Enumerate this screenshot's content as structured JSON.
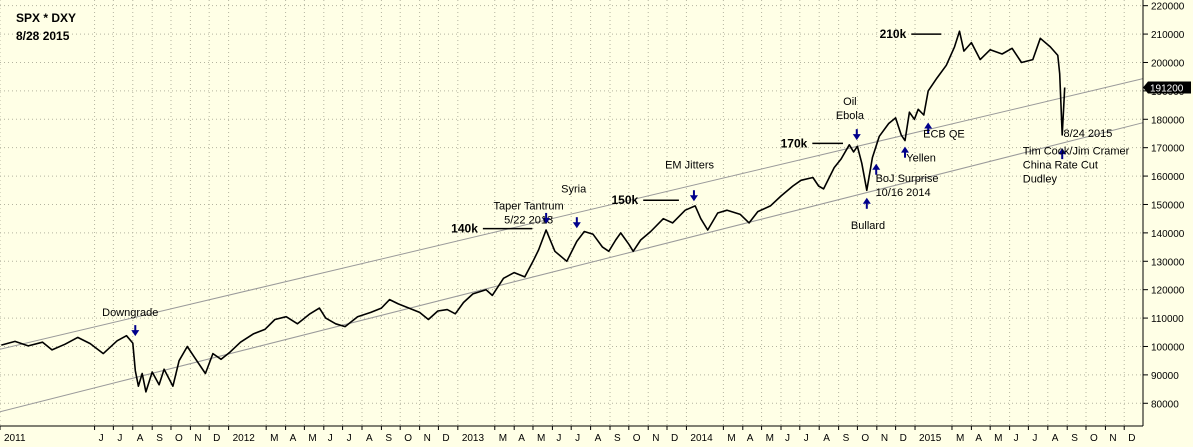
{
  "chart_data": {
    "type": "line",
    "title": "SPX * DXY",
    "subtitle": "8/28 2015",
    "ylim": [
      72000,
      222000
    ],
    "y_ticks": [
      80000,
      90000,
      100000,
      110000,
      120000,
      130000,
      140000,
      150000,
      160000,
      170000,
      180000,
      190000,
      200000,
      210000,
      220000
    ],
    "y_tick_labels": [
      "80000",
      "90000",
      "100000",
      "110000",
      "120000",
      "130000",
      "140000",
      "150000",
      "160000",
      "170000",
      "180000",
      "190000",
      "200000",
      "210000",
      "220000"
    ],
    "x_range": [
      "2011-01-01",
      "2015-12-31"
    ],
    "x_ticks": [
      {
        "date": "2011-01-01",
        "label": "2011"
      },
      {
        "date": "2011-06-01",
        "label": "J"
      },
      {
        "date": "2011-07-01",
        "label": "J"
      },
      {
        "date": "2011-08-01",
        "label": "A"
      },
      {
        "date": "2011-09-01",
        "label": "S"
      },
      {
        "date": "2011-10-01",
        "label": "O"
      },
      {
        "date": "2011-11-01",
        "label": "N"
      },
      {
        "date": "2011-12-01",
        "label": "D"
      },
      {
        "date": "2012-01-01",
        "label": "2012"
      },
      {
        "date": "2012-03-01",
        "label": "M"
      },
      {
        "date": "2012-04-01",
        "label": "A"
      },
      {
        "date": "2012-05-01",
        "label": "M"
      },
      {
        "date": "2012-06-01",
        "label": "J"
      },
      {
        "date": "2012-07-01",
        "label": "J"
      },
      {
        "date": "2012-08-01",
        "label": "A"
      },
      {
        "date": "2012-09-01",
        "label": "S"
      },
      {
        "date": "2012-10-01",
        "label": "O"
      },
      {
        "date": "2012-11-01",
        "label": "N"
      },
      {
        "date": "2012-12-01",
        "label": "D"
      },
      {
        "date": "2013-01-01",
        "label": "2013"
      },
      {
        "date": "2013-03-01",
        "label": "M"
      },
      {
        "date": "2013-04-01",
        "label": "A"
      },
      {
        "date": "2013-05-01",
        "label": "M"
      },
      {
        "date": "2013-06-01",
        "label": "J"
      },
      {
        "date": "2013-07-01",
        "label": "J"
      },
      {
        "date": "2013-08-01",
        "label": "A"
      },
      {
        "date": "2013-09-01",
        "label": "S"
      },
      {
        "date": "2013-10-01",
        "label": "O"
      },
      {
        "date": "2013-11-01",
        "label": "N"
      },
      {
        "date": "2013-12-01",
        "label": "D"
      },
      {
        "date": "2014-01-01",
        "label": "2014"
      },
      {
        "date": "2014-03-01",
        "label": "M"
      },
      {
        "date": "2014-04-01",
        "label": "A"
      },
      {
        "date": "2014-05-01",
        "label": "M"
      },
      {
        "date": "2014-06-01",
        "label": "J"
      },
      {
        "date": "2014-07-01",
        "label": "J"
      },
      {
        "date": "2014-08-01",
        "label": "A"
      },
      {
        "date": "2014-09-01",
        "label": "S"
      },
      {
        "date": "2014-10-01",
        "label": "O"
      },
      {
        "date": "2014-11-01",
        "label": "N"
      },
      {
        "date": "2014-12-01",
        "label": "D"
      },
      {
        "date": "2015-01-01",
        "label": "2015"
      },
      {
        "date": "2015-03-01",
        "label": "M"
      },
      {
        "date": "2015-04-01",
        "label": "A"
      },
      {
        "date": "2015-05-01",
        "label": "M"
      },
      {
        "date": "2015-06-01",
        "label": "J"
      },
      {
        "date": "2015-07-01",
        "label": "J"
      },
      {
        "date": "2015-08-01",
        "label": "A"
      },
      {
        "date": "2015-09-01",
        "label": "S"
      },
      {
        "date": "2015-10-01",
        "label": "O"
      },
      {
        "date": "2015-11-01",
        "label": "N"
      },
      {
        "date": "2015-12-01",
        "label": "D"
      }
    ],
    "grid": true,
    "last_value": 191200,
    "last_value_label": "191200",
    "series": [
      {
        "color": "#000000",
        "points": [
          [
            "2011-01-03",
            100500
          ],
          [
            "2011-01-25",
            101800
          ],
          [
            "2011-02-15",
            100200
          ],
          [
            "2011-03-10",
            101500
          ],
          [
            "2011-03-25",
            98800
          ],
          [
            "2011-04-15",
            100800
          ],
          [
            "2011-05-05",
            103200
          ],
          [
            "2011-05-25",
            101000
          ],
          [
            "2011-06-15",
            97500
          ],
          [
            "2011-07-07",
            102000
          ],
          [
            "2011-07-22",
            103800
          ],
          [
            "2011-08-01",
            101200
          ],
          [
            "2011-08-05",
            91500
          ],
          [
            "2011-08-10",
            86000
          ],
          [
            "2011-08-16",
            90500
          ],
          [
            "2011-08-22",
            84000
          ],
          [
            "2011-09-01",
            91000
          ],
          [
            "2011-09-12",
            86500
          ],
          [
            "2011-09-20",
            92000
          ],
          [
            "2011-10-04",
            86000
          ],
          [
            "2011-10-14",
            95000
          ],
          [
            "2011-10-27",
            100000
          ],
          [
            "2011-11-08",
            96000
          ],
          [
            "2011-11-25",
            90500
          ],
          [
            "2011-12-07",
            97500
          ],
          [
            "2011-12-20",
            95500
          ],
          [
            "2012-01-03",
            98000
          ],
          [
            "2012-01-20",
            101500
          ],
          [
            "2012-02-10",
            104500
          ],
          [
            "2012-02-28",
            106000
          ],
          [
            "2012-03-15",
            109500
          ],
          [
            "2012-04-02",
            110500
          ],
          [
            "2012-04-20",
            108000
          ],
          [
            "2012-05-10",
            111500
          ],
          [
            "2012-05-25",
            113500
          ],
          [
            "2012-06-04",
            110000
          ],
          [
            "2012-06-20",
            108000
          ],
          [
            "2012-07-05",
            107000
          ],
          [
            "2012-07-25",
            110500
          ],
          [
            "2012-08-15",
            112000
          ],
          [
            "2012-09-01",
            113500
          ],
          [
            "2012-09-14",
            116500
          ],
          [
            "2012-09-28",
            115000
          ],
          [
            "2012-10-15",
            113500
          ],
          [
            "2012-11-01",
            112000
          ],
          [
            "2012-11-15",
            109500
          ],
          [
            "2012-11-30",
            112500
          ],
          [
            "2012-12-15",
            113000
          ],
          [
            "2012-12-28",
            111500
          ],
          [
            "2013-01-10",
            115500
          ],
          [
            "2013-01-25",
            118500
          ],
          [
            "2013-02-15",
            120000
          ],
          [
            "2013-02-25",
            118000
          ],
          [
            "2013-03-15",
            124000
          ],
          [
            "2013-04-01",
            126000
          ],
          [
            "2013-04-18",
            124500
          ],
          [
            "2013-05-01",
            130000
          ],
          [
            "2013-05-10",
            134000
          ],
          [
            "2013-05-22",
            141000
          ],
          [
            "2013-06-05",
            133500
          ],
          [
            "2013-06-24",
            130000
          ],
          [
            "2013-07-10",
            137000
          ],
          [
            "2013-07-22",
            140500
          ],
          [
            "2013-08-05",
            139500
          ],
          [
            "2013-08-20",
            135000
          ],
          [
            "2013-08-30",
            133500
          ],
          [
            "2013-09-10",
            137500
          ],
          [
            "2013-09-18",
            140000
          ],
          [
            "2013-10-01",
            136000
          ],
          [
            "2013-10-08",
            133500
          ],
          [
            "2013-10-20",
            137500
          ],
          [
            "2013-11-05",
            140500
          ],
          [
            "2013-11-25",
            145000
          ],
          [
            "2013-12-10",
            143500
          ],
          [
            "2013-12-30",
            148000
          ],
          [
            "2014-01-15",
            149500
          ],
          [
            "2014-01-24",
            145000
          ],
          [
            "2014-02-04",
            141000
          ],
          [
            "2014-02-20",
            147000
          ],
          [
            "2014-03-07",
            148000
          ],
          [
            "2014-03-28",
            146500
          ],
          [
            "2014-04-11",
            143500
          ],
          [
            "2014-04-25",
            147500
          ],
          [
            "2014-05-15",
            149500
          ],
          [
            "2014-06-01",
            153000
          ],
          [
            "2014-06-20",
            156500
          ],
          [
            "2014-07-03",
            158500
          ],
          [
            "2014-07-22",
            159500
          ],
          [
            "2014-07-31",
            156500
          ],
          [
            "2014-08-08",
            155500
          ],
          [
            "2014-08-25",
            163000
          ],
          [
            "2014-09-05",
            166000
          ],
          [
            "2014-09-18",
            171000
          ],
          [
            "2014-09-25",
            168500
          ],
          [
            "2014-10-01",
            170500
          ],
          [
            "2014-10-08",
            164500
          ],
          [
            "2014-10-16",
            155000
          ],
          [
            "2014-10-25",
            166500
          ],
          [
            "2014-11-05",
            174000
          ],
          [
            "2014-11-20",
            178500
          ],
          [
            "2014-12-01",
            180500
          ],
          [
            "2014-12-10",
            174500
          ],
          [
            "2014-12-16",
            172500
          ],
          [
            "2014-12-23",
            182500
          ],
          [
            "2014-12-31",
            180000
          ],
          [
            "2015-01-06",
            183500
          ],
          [
            "2015-01-15",
            181500
          ],
          [
            "2015-01-22",
            190000
          ],
          [
            "2015-02-05",
            194500
          ],
          [
            "2015-02-20",
            199000
          ],
          [
            "2015-03-05",
            205500
          ],
          [
            "2015-03-13",
            211000
          ],
          [
            "2015-03-20",
            204000
          ],
          [
            "2015-04-01",
            207000
          ],
          [
            "2015-04-15",
            201000
          ],
          [
            "2015-05-01",
            204500
          ],
          [
            "2015-05-20",
            203000
          ],
          [
            "2015-06-05",
            205000
          ],
          [
            "2015-06-20",
            200000
          ],
          [
            "2015-07-08",
            201000
          ],
          [
            "2015-07-20",
            208500
          ],
          [
            "2015-08-05",
            205500
          ],
          [
            "2015-08-17",
            202500
          ],
          [
            "2015-08-20",
            196000
          ],
          [
            "2015-08-24",
            174500
          ],
          [
            "2015-08-26",
            183000
          ],
          [
            "2015-08-28",
            191200
          ]
        ]
      }
    ],
    "trend_lines": [
      {
        "from": [
          "2011-01-01",
          77000
        ],
        "to": [
          "2015-12-31",
          178800
        ]
      },
      {
        "from": [
          "2011-01-01",
          99000
        ],
        "to": [
          "2015-12-31",
          194300
        ]
      }
    ],
    "level_marks": [
      {
        "label": "210k",
        "value": 210000,
        "from": "2014-12-26",
        "to": "2015-02-12"
      },
      {
        "label": "170k",
        "value": 171500,
        "from": "2014-07-21",
        "to": "2014-09-08"
      },
      {
        "label": "150k",
        "value": 151500,
        "from": "2013-10-24",
        "to": "2013-12-20"
      },
      {
        "label": "140k",
        "value": 141500,
        "from": "2013-02-10",
        "to": "2013-04-30"
      }
    ],
    "annotations": [
      {
        "date": "2011-08-05",
        "arrow": "down",
        "value": 104000,
        "lines": [
          "Downgrade"
        ],
        "text_date": "2011-07-28",
        "text_value": 110800,
        "anchor": "middle"
      },
      {
        "date": "2013-05-22",
        "arrow": "down",
        "value": 143500,
        "lines": [
          "Taper Tantrum",
          "5/22 2013"
        ],
        "text_date": "2013-04-24",
        "text_value": 148200,
        "anchor": "middle"
      },
      {
        "date": "2013-07-10",
        "arrow": "down",
        "value": 142000,
        "lines": [
          "Syria"
        ],
        "text_date": "2013-07-05",
        "text_value": 154200,
        "anchor": "middle"
      },
      {
        "date": "2014-01-13",
        "arrow": "down",
        "value": 151500,
        "lines": [
          "EM Jitters"
        ],
        "text_date": "2014-01-06",
        "text_value": 162700,
        "anchor": "middle"
      },
      {
        "date": "2014-09-30",
        "arrow": "down",
        "value": 173000,
        "lines": [
          "Oil",
          "Ebola"
        ],
        "text_date": "2014-09-19",
        "text_value": 185100,
        "anchor": "middle"
      },
      {
        "date": "2014-10-16",
        "arrow": "up",
        "value": 152000,
        "lines": [
          "Bullard"
        ],
        "text_date": "2014-10-18",
        "text_value": 141400,
        "anchor": "middle"
      },
      {
        "date": "2014-10-31",
        "arrow": "up",
        "value": 164000,
        "lines": [
          "BoJ Surprise",
          "10/16 2014"
        ],
        "text_date": "2014-10-30",
        "text_value": 157900,
        "anchor": "start"
      },
      {
        "date": "2014-12-16",
        "arrow": "up",
        "value": 170000,
        "lines": [
          "Yellen"
        ],
        "text_date": "2014-12-18",
        "text_value": 165100,
        "anchor": "start"
      },
      {
        "date": "2015-01-22",
        "arrow": "up",
        "value": 178500,
        "lines": [
          "ECB QE"
        ],
        "text_date": "2015-01-14",
        "text_value": 173500,
        "anchor": "start"
      },
      {
        "date": "2015-08-24",
        "arrow": "up",
        "value": 169500,
        "lines": [
          "8/24 2015"
        ],
        "text_date": "2015-08-26",
        "text_value": 173800,
        "anchor": "start"
      },
      {
        "date": "2015-08-24",
        "arrow": "none",
        "value": 165000,
        "lines": [
          "Tim Cook/Jim Cramer",
          "China Rate Cut",
          "Dudley"
        ],
        "text_date": "2015-06-22",
        "text_value": 167600,
        "anchor": "start"
      }
    ]
  }
}
